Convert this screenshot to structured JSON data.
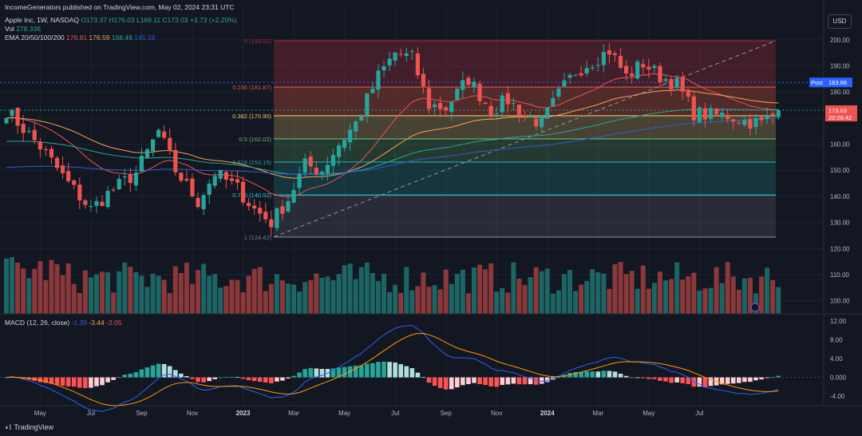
{
  "header": {
    "published": "IncomeGenerators published on TradingView.com, May 02, 2024 23:31 UTC",
    "symbol": "Apple Inc, 1W, NASDAQ",
    "o": "O173.37",
    "h": "H176.03",
    "l": "L169.11",
    "c": "C173.03",
    "chg": "+3.73 (+2.20%)",
    "vol_label": "Vol",
    "vol_value": "278.336",
    "ema_label": "EMA 20/50/100/200",
    "ema_values": [
      "176.81",
      "176.59",
      "168.49",
      "145.18"
    ],
    "currency": "USD",
    "macd_label": "MACD (12, 26, close)",
    "macd_values": [
      "-1.39",
      "-3.44",
      "-2.05"
    ],
    "logo": "TradingView"
  },
  "colors": {
    "bg": "#131722",
    "up": "#26a69a",
    "down": "#ef5350",
    "ema20": "#ef5350",
    "ema50": "#f5a455",
    "ema100": "#26a69a",
    "ema200": "#2f5dd6"
  },
  "chart_data": {
    "type": "candlestick",
    "y_range": [
      95,
      203
    ],
    "y_ticks": [
      "200.00",
      "190.00",
      "180.00",
      "170.00",
      "160.00",
      "150.00",
      "140.00",
      "130.00",
      "120.00",
      "110.00",
      "100.00"
    ],
    "x_ticks": [
      "May",
      "Jul",
      "Sep",
      "Nov",
      "2023",
      "Mar",
      "May",
      "Jul",
      "Sep",
      "Nov",
      "2024",
      "Mar",
      "May",
      "Jul"
    ],
    "fib_levels": [
      {
        "ratio": "0",
        "value": "199.62",
        "label": "0 (199.62)"
      },
      {
        "ratio": "0.236",
        "value": "181.87",
        "label": "0.236 (181.87)"
      },
      {
        "ratio": "0.382",
        "value": "170.90",
        "label": "0.382 (170.90)"
      },
      {
        "ratio": "0.5",
        "value": "162.02",
        "label": "0.5 (162.02)"
      },
      {
        "ratio": "0.618",
        "value": "153.15",
        "label": "0.618 (153.15)"
      },
      {
        "ratio": "0.786",
        "value": "140.52",
        "label": "0.786 (140.52)"
      },
      {
        "ratio": "1",
        "value": "124.42",
        "label": "1 (124.42)"
      }
    ],
    "price_tags": {
      "post_label": "Post",
      "post_value": "183.66",
      "last_value": "173.03",
      "countdown": "20:28:42"
    },
    "macd_ticks": [
      "12.00",
      "8.00",
      "4.00",
      "0.000",
      "-4.00"
    ],
    "macd_range": [
      -6,
      13.5
    ],
    "candle_close_anchors": [
      [
        0,
        173
      ],
      [
        6,
        159
      ],
      [
        11,
        145
      ],
      [
        15,
        135
      ],
      [
        18,
        141
      ],
      [
        23,
        149
      ],
      [
        27,
        165
      ],
      [
        30,
        150
      ],
      [
        34,
        138
      ],
      [
        37,
        149
      ],
      [
        41,
        143
      ],
      [
        44,
        135
      ],
      [
        47,
        130
      ],
      [
        50,
        139
      ],
      [
        53,
        152
      ],
      [
        56,
        150
      ],
      [
        59,
        160
      ],
      [
        62,
        168
      ],
      [
        66,
        186
      ],
      [
        69,
        195
      ],
      [
        72,
        193
      ],
      [
        75,
        175
      ],
      [
        78,
        174
      ],
      [
        82,
        185
      ],
      [
        86,
        173
      ],
      [
        89,
        177
      ],
      [
        92,
        171
      ],
      [
        95,
        168
      ],
      [
        98,
        179
      ],
      [
        101,
        188
      ],
      [
        104,
        192
      ],
      [
        107,
        196
      ],
      [
        110,
        186
      ],
      [
        113,
        191
      ],
      [
        116,
        186
      ],
      [
        119,
        183
      ],
      [
        122,
        172
      ],
      [
        125,
        171
      ],
      [
        128,
        171
      ],
      [
        131,
        169
      ],
      [
        134,
        168
      ],
      [
        137,
        173
      ]
    ]
  }
}
